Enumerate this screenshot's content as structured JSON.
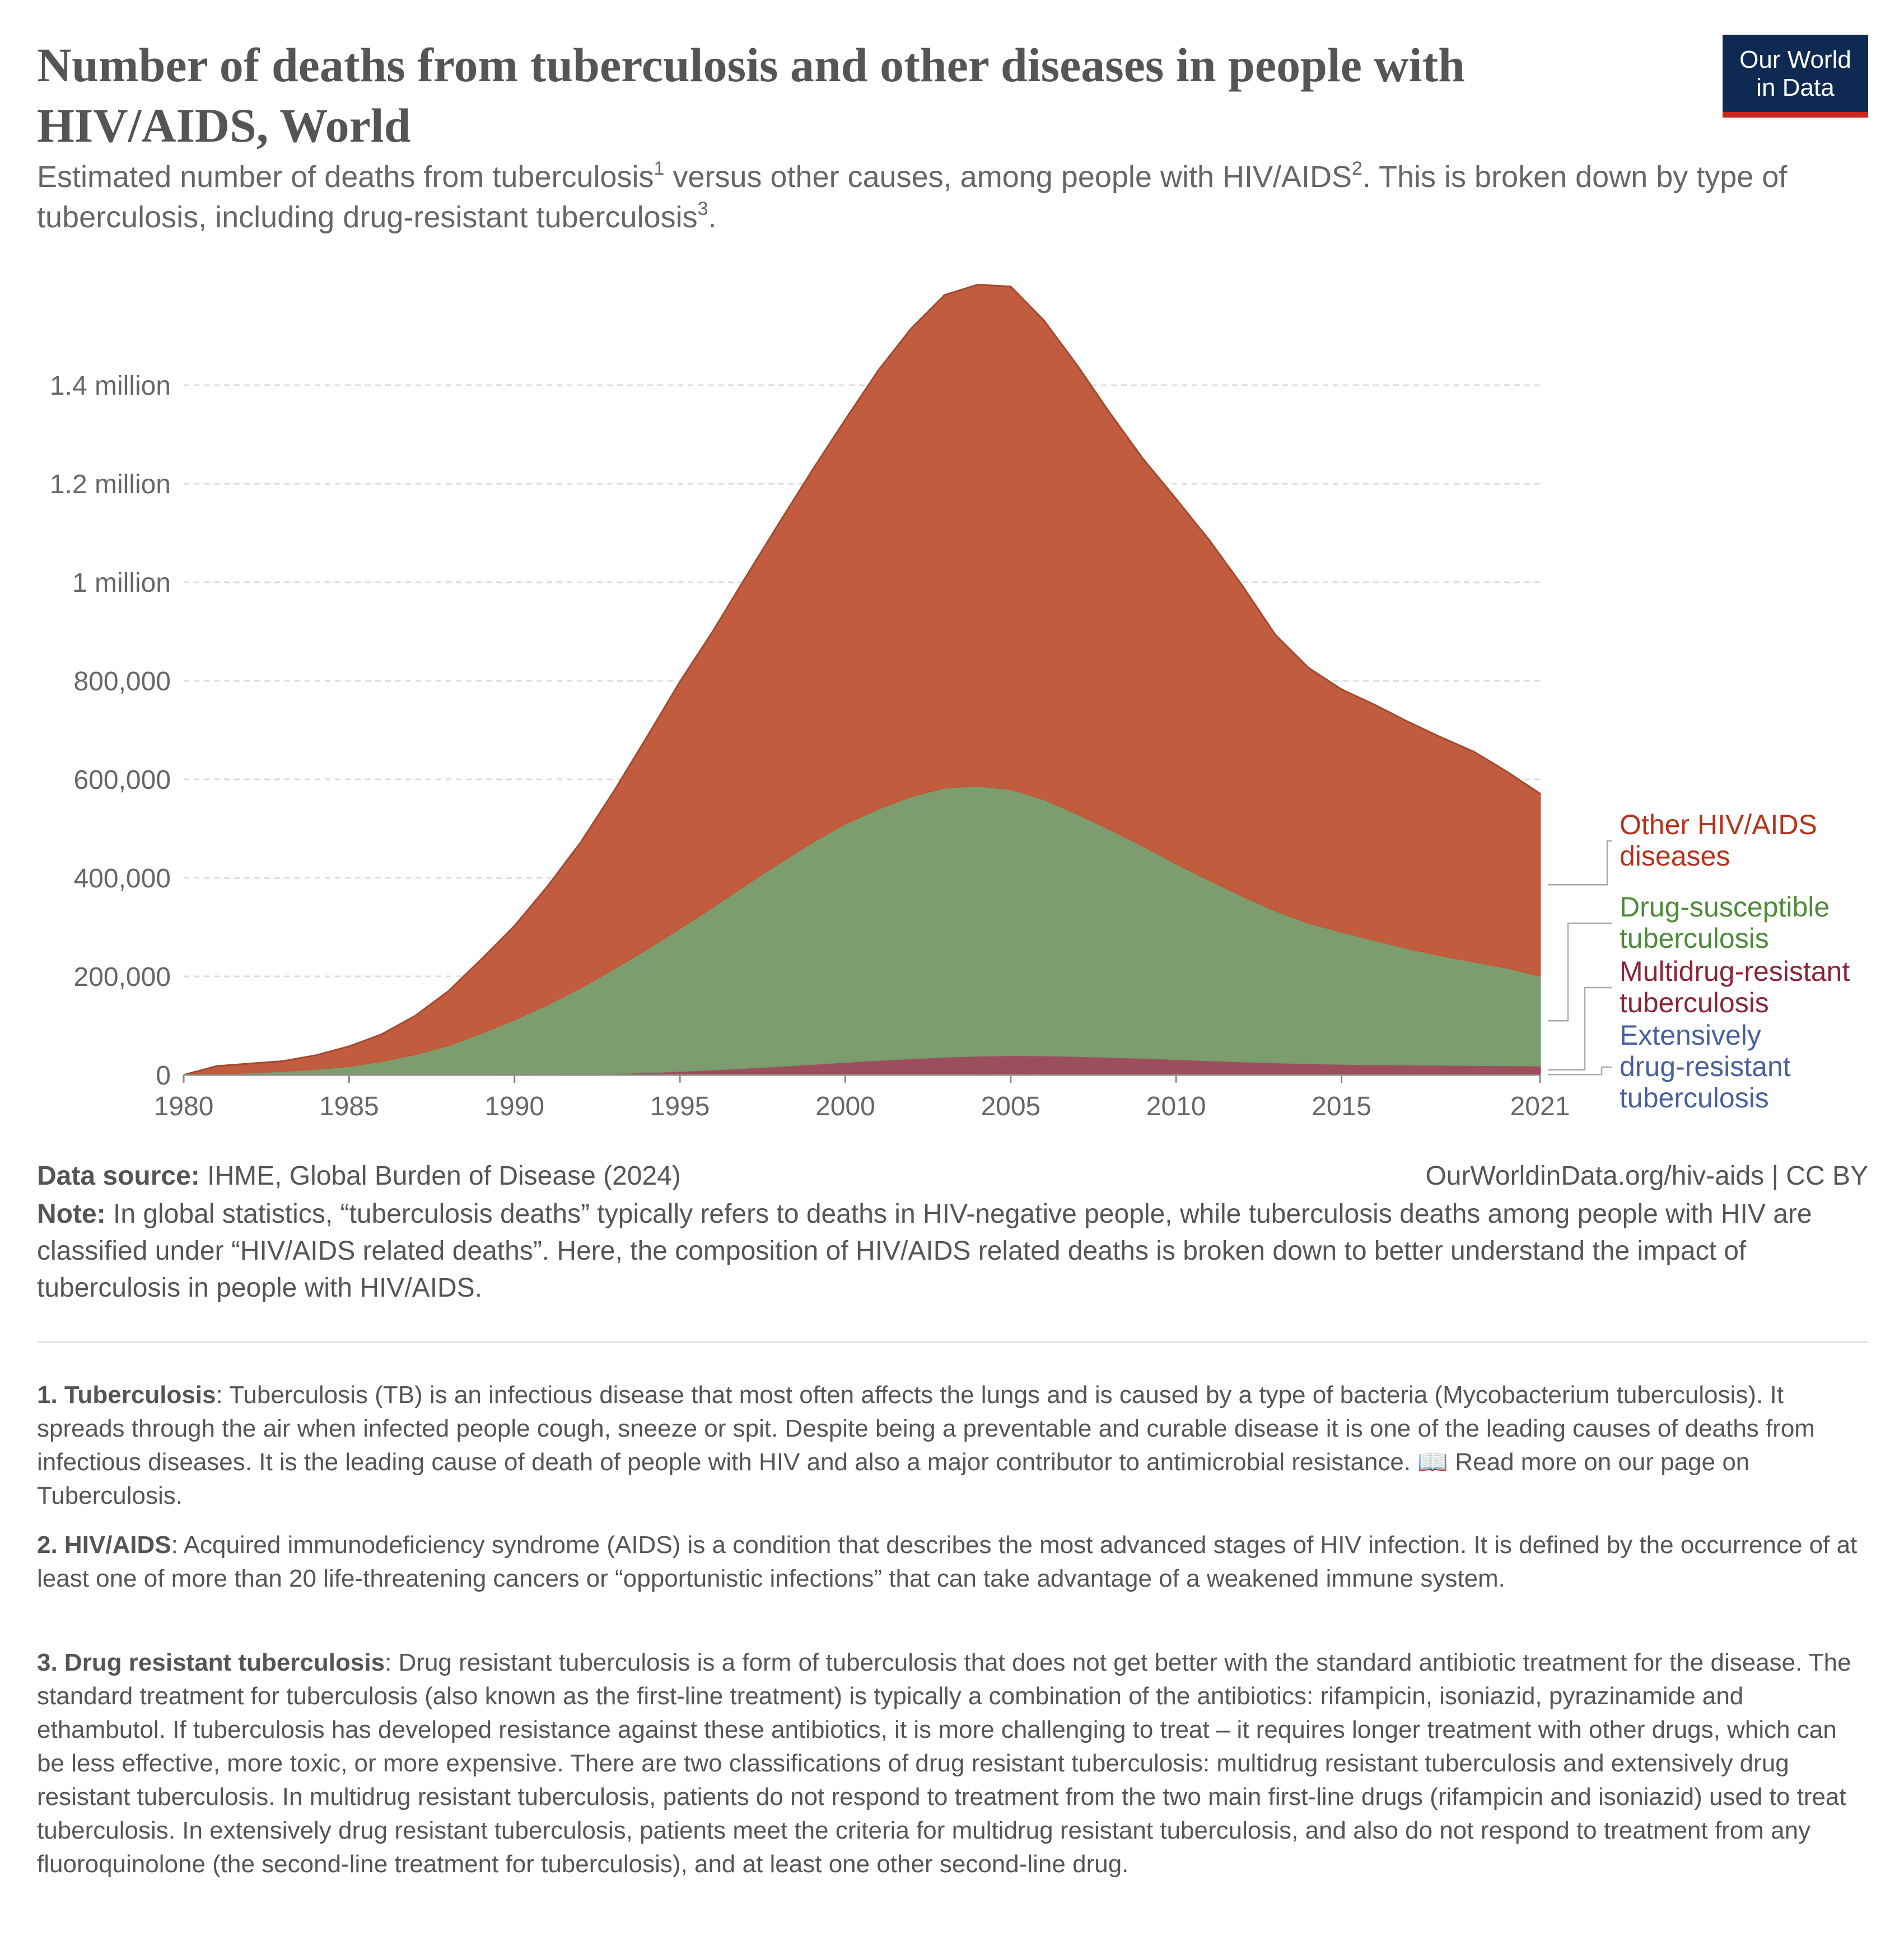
{
  "header": {
    "title": "Number of deaths from tuberculosis and other diseases in people with HIV/AIDS, World",
    "subtitle_part1": "Estimated number of deaths from tuberculosis",
    "subtitle_sup1": "1",
    "subtitle_part2": " versus other causes, among people with HIV/AIDS",
    "subtitle_sup2": "2",
    "subtitle_part3": ". This is broken down by type of tuberculosis, including drug-resistant tuberculosis",
    "subtitle_sup3": "3",
    "subtitle_part4": ".",
    "logo_line1": "Our World",
    "logo_line2": "in Data"
  },
  "colors": {
    "other_hiv": "#c05a3a",
    "drug_susceptible": "#7a9b6b",
    "multidrug": "#9b4a5a",
    "extensively": "#4a5a9b",
    "other_hiv_label": "#b4331c",
    "drug_susceptible_label": "#4f8a3a",
    "multidrug_label": "#8c2338",
    "extensively_label": "#4a5fa0",
    "logo_bg": "#0f2a52",
    "logo_accent": "#ce261e"
  },
  "chart_data": {
    "type": "area",
    "stacked": true,
    "x": [
      1980,
      1981,
      1982,
      1983,
      1984,
      1985,
      1986,
      1987,
      1988,
      1989,
      1990,
      1991,
      1992,
      1993,
      1994,
      1995,
      1996,
      1997,
      1998,
      1999,
      2000,
      2001,
      2002,
      2003,
      2004,
      2005,
      2006,
      2007,
      2008,
      2009,
      2010,
      2011,
      2012,
      2013,
      2014,
      2015,
      2016,
      2017,
      2018,
      2019,
      2020,
      2021
    ],
    "y_ticks": [
      {
        "value": 0,
        "label": "0"
      },
      {
        "value": 200000,
        "label": "200,000"
      },
      {
        "value": 400000,
        "label": "400,000"
      },
      {
        "value": 600000,
        "label": "600,000"
      },
      {
        "value": 800000,
        "label": "800,000"
      },
      {
        "value": 1000000,
        "label": "1 million"
      },
      {
        "value": 1200000,
        "label": "1.2 million"
      },
      {
        "value": 1400000,
        "label": "1.4 million"
      }
    ],
    "x_ticks": [
      {
        "value": 1980,
        "label": "1980"
      },
      {
        "value": 1985,
        "label": "1985"
      },
      {
        "value": 1990,
        "label": "1990"
      },
      {
        "value": 1995,
        "label": "1995"
      },
      {
        "value": 2000,
        "label": "2000"
      },
      {
        "value": 2005,
        "label": "2005"
      },
      {
        "value": 2010,
        "label": "2010"
      },
      {
        "value": 2015,
        "label": "2015"
      },
      {
        "value": 2021,
        "label": "2021"
      }
    ],
    "ylim": [
      0,
      1600000
    ],
    "grid": true,
    "series": [
      {
        "name": "Extensively drug-resistant tuberculosis",
        "label_lines": [
          "Extensively",
          "drug-resistant",
          "tuberculosis"
        ],
        "color_key": "extensively",
        "values": [
          0,
          0,
          0,
          0,
          0,
          0,
          0,
          0,
          0,
          0,
          0,
          0,
          0,
          0,
          0,
          0,
          0,
          0,
          100,
          150,
          200,
          250,
          300,
          400,
          500,
          600,
          700,
          800,
          900,
          1000,
          1100,
          1200,
          1300,
          1400,
          1500,
          1500,
          1500,
          1500,
          1500,
          1500,
          1500,
          1500
        ]
      },
      {
        "name": "Multidrug-resistant tuberculosis",
        "label_lines": [
          "Multidrug-resistant",
          "tuberculosis"
        ],
        "color_key": "multidrug",
        "values": [
          0,
          0,
          0,
          0,
          0,
          0,
          0,
          0,
          0,
          0,
          500,
          1000,
          2000,
          3500,
          5500,
          8000,
          11000,
          14500,
          18000,
          22000,
          26000,
          30000,
          33500,
          36500,
          38500,
          39500,
          39000,
          37500,
          35500,
          33500,
          31000,
          28500,
          26000,
          24000,
          22000,
          21000,
          20000,
          19500,
          19000,
          18500,
          18000,
          17500
        ]
      },
      {
        "name": "Drug-susceptible tuberculosis",
        "label_lines": [
          "Drug-susceptible",
          "tuberculosis"
        ],
        "color_key": "drug_susceptible",
        "values": [
          0,
          3000,
          5000,
          8000,
          12000,
          18000,
          28000,
          42000,
          60000,
          85000,
          112000,
          142000,
          175000,
          212000,
          250000,
          290000,
          330000,
          372000,
          412000,
          450000,
          484000,
          510000,
          532000,
          546000,
          548000,
          540000,
          520000,
          492000,
          462000,
          430000,
          397000,
          366000,
          336000,
          308000,
          285000,
          268000,
          252000,
          236000,
          222000,
          210000,
          198000,
          182000
        ]
      },
      {
        "name": "Other HIV/AIDS diseases",
        "label_lines": [
          "Other HIV/AIDS",
          "diseases"
        ],
        "color_key": "other_hiv",
        "values": [
          0,
          15000,
          18000,
          20000,
          28000,
          40000,
          55000,
          78000,
          110000,
          150000,
          190000,
          240000,
          295000,
          360000,
          430000,
          500000,
          560000,
          625000,
          690000,
          755000,
          820000,
          890000,
          950000,
          1000000,
          1017000,
          1020000,
          972000,
          911000,
          845000,
          786000,
          740000,
          690000,
          630000,
          560000,
          518000,
          492000,
          478000,
          460000,
          443000,
          426000,
          398000,
          370000
        ]
      }
    ]
  },
  "footer": {
    "source_label": "Data source:",
    "source_text": " IHME, Global Burden of Disease (2024)",
    "url_text": "OurWorldinData.org/hiv-aids | CC BY",
    "note_label": "Note:",
    "note_text": " In global statistics, “tuberculosis deaths” typically refers to deaths in HIV-negative people, while tuberculosis deaths among people with HIV are classified under “HIV/AIDS related deaths”. Here, the composition of HIV/AIDS related deaths is broken down to better understand the impact of tuberculosis in people with HIV/AIDS."
  },
  "footnotes": [
    {
      "label": "1. Tuberculosis",
      "text": ": Tuberculosis (TB) is an infectious disease that most often affects the lungs and is caused by a type of bacteria (Mycobacterium tuberculosis). It spreads through the air when infected people cough, sneeze or spit. Despite being a preventable and curable disease it is one of the leading causes of deaths from infectious diseases. It is the leading cause of death of people with HIV and also a major contributor to antimicrobial resistance. 📖 Read more on our page on Tuberculosis."
    },
    {
      "label": "2. HIV/AIDS",
      "text": ": Acquired immunodeficiency syndrome (AIDS) is a condition that describes the most advanced stages of HIV infection. It is defined by the occurrence of at least one of more than 20 life-threatening cancers or “opportunistic infections” that can take advantage of a weakened immune system."
    },
    {
      "label": "3. Drug resistant tuberculosis",
      "text": ": Drug resistant tuberculosis is a form of tuberculosis that does not get better with the standard antibiotic treatment for the disease. The standard treatment for tuberculosis (also known as the first-line treatment) is typically a combination of the antibiotics: rifampicin, isoniazid, pyrazinamide and ethambutol. If tuberculosis has developed resistance against these antibiotics, it is more challenging to treat – it requires longer treatment with other drugs, which can be less effective, more toxic, or more expensive. There are two classifications of drug resistant tuberculosis: multidrug resistant tuberculosis and extensively drug resistant tuberculosis. In multidrug resistant tuberculosis, patients do not respond to treatment from the two main first-line drugs (rifampicin and isoniazid) used to treat tuberculosis. In extensively drug resistant tuberculosis, patients meet the criteria for multidrug resistant tuberculosis, and also do not respond to treatment from any fluoroquinolone (the second-line treatment for tuberculosis), and at least one other second-line drug."
    }
  ]
}
